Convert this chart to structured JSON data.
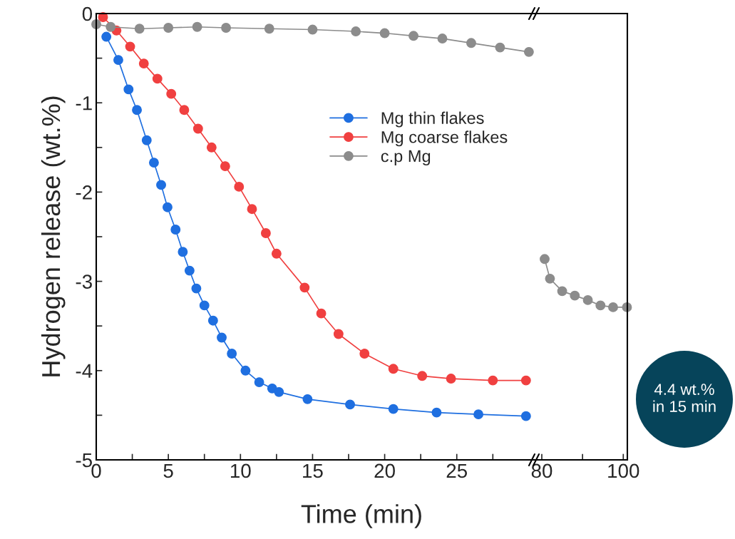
{
  "chart_data": [
    {
      "type": "line",
      "ylabel": "Hydrogen release (wt.%)",
      "xlabel": "Time (min)",
      "xlim": [
        0,
        30.5
      ],
      "ylim": [
        -5,
        0
      ],
      "xticks": [
        0,
        {
          "value": 2.5,
          "label": null
        },
        5,
        {
          "value": 7.5,
          "label": null
        },
        10,
        {
          "value": 12.5,
          "label": null
        },
        15,
        {
          "value": 17.5,
          "label": null
        },
        20,
        {
          "value": 22.5,
          "label": null
        },
        25,
        {
          "value": 27.5,
          "label": null
        }
      ],
      "yticks": [
        -5,
        {
          "value": -4.5,
          "label": null
        },
        -4,
        {
          "value": -3.5,
          "label": null
        },
        -3,
        {
          "value": -2.5,
          "label": null
        },
        -2,
        {
          "value": -1.5,
          "label": null
        },
        -1,
        {
          "value": -0.5,
          "label": null
        },
        0
      ],
      "marker": "circle",
      "line_style": "solid",
      "legend": "right",
      "grid": false,
      "annotations": [
        "4.4 wt.%\nin 15 min"
      ],
      "series": [
        {
          "name": "Mg thin flakes",
          "color": "#1f6fe0",
          "x": [
            0.7,
            1.53,
            2.24,
            2.82,
            3.5,
            4.0,
            4.5,
            4.94,
            5.5,
            6.0,
            6.47,
            6.94,
            7.5,
            8.1,
            8.7,
            9.4,
            10.35,
            11.3,
            12.2,
            12.67,
            14.65,
            17.6,
            20.6,
            23.6,
            26.5,
            29.8
          ],
          "values": [
            -0.26,
            -0.52,
            -0.85,
            -1.08,
            -1.42,
            -1.67,
            -1.92,
            -2.17,
            -2.42,
            -2.67,
            -2.88,
            -3.08,
            -3.27,
            -3.44,
            -3.63,
            -3.81,
            -4.0,
            -4.13,
            -4.2,
            -4.24,
            -4.32,
            -4.38,
            -4.43,
            -4.47,
            -4.49,
            -4.51
          ]
        },
        {
          "name": "Mg coarse flakes",
          "color": "#f04040",
          "x": [
            0.47,
            1.4,
            2.35,
            3.3,
            4.24,
            5.2,
            6.1,
            7.06,
            8.0,
            8.94,
            9.9,
            10.8,
            11.76,
            12.5,
            14.45,
            15.6,
            16.8,
            18.6,
            20.6,
            22.6,
            24.6,
            27.5,
            29.8
          ],
          "values": [
            -0.04,
            -0.19,
            -0.37,
            -0.56,
            -0.73,
            -0.9,
            -1.08,
            -1.29,
            -1.5,
            -1.71,
            -1.94,
            -2.19,
            -2.46,
            -2.69,
            -3.07,
            -3.36,
            -3.59,
            -3.81,
            -3.98,
            -4.06,
            -4.09,
            -4.11,
            -4.11
          ]
        },
        {
          "name": "c.p Mg",
          "color": "#8c8c8c",
          "x": [
            0,
            1,
            3,
            5,
            7,
            9,
            12,
            15,
            18,
            20,
            22,
            24,
            26,
            28,
            30
          ],
          "values": [
            -0.12,
            -0.15,
            -0.17,
            -0.16,
            -0.15,
            -0.16,
            -0.17,
            -0.18,
            -0.2,
            -0.22,
            -0.25,
            -0.28,
            -0.33,
            -0.38,
            -0.43
          ]
        }
      ]
    },
    {
      "type": "line",
      "xlim": [
        78.6,
        101
      ],
      "ylim": [
        -5,
        0
      ],
      "tick_labels": "x",
      "xticks": [
        80,
        {
          "value": 90,
          "label": null
        },
        100
      ],
      "marker": "circle",
      "line_style": "solid",
      "series": [
        {
          "color": "#8c8c8c",
          "x": [
            80.7,
            82,
            85,
            88.1,
            91.3,
            94.4,
            97.5,
            100.9
          ],
          "values": [
            -2.75,
            -2.97,
            -3.11,
            -3.16,
            -3.21,
            -3.27,
            -3.29,
            -3.29
          ]
        }
      ]
    }
  ]
}
